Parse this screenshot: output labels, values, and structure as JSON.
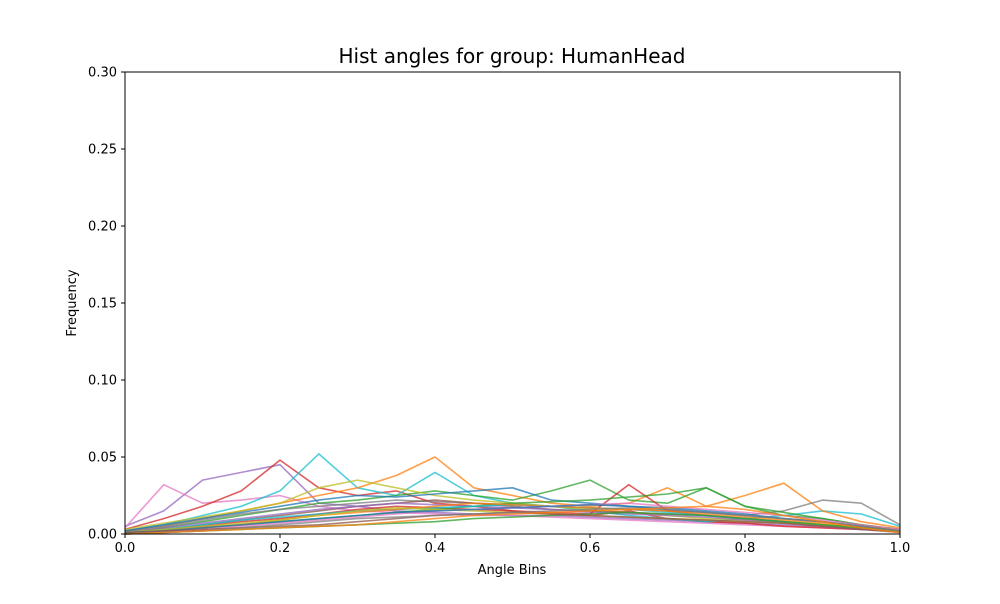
{
  "chart_data": {
    "type": "line",
    "title": "Hist angles for group: HumanHead",
    "xlabel": "Angle Bins",
    "ylabel": "Frequency",
    "xlim": [
      0.0,
      1.0
    ],
    "ylim": [
      0.0,
      0.3
    ],
    "xticks": [
      "0.0",
      "0.2",
      "0.4",
      "0.6",
      "0.8",
      "1.0"
    ],
    "yticks": [
      "0.00",
      "0.05",
      "0.10",
      "0.15",
      "0.20",
      "0.25",
      "0.30"
    ],
    "grid": false,
    "legend": "none",
    "x": [
      0.0,
      0.05,
      0.1,
      0.15,
      0.2,
      0.25,
      0.3,
      0.35,
      0.4,
      0.45,
      0.5,
      0.55,
      0.6,
      0.65,
      0.7,
      0.75,
      0.8,
      0.85,
      0.9,
      0.95,
      1.0
    ],
    "series": [
      {
        "color": "#9467bd",
        "values": [
          0.005,
          0.015,
          0.035,
          0.04,
          0.045,
          0.02,
          0.018,
          0.015,
          0.014,
          0.013,
          0.012,
          0.012,
          0.011,
          0.01,
          0.009,
          0.008,
          0.007,
          0.006,
          0.005,
          0.004,
          0.003
        ]
      },
      {
        "color": "#e377c2",
        "values": [
          0.004,
          0.032,
          0.02,
          0.022,
          0.025,
          0.018,
          0.015,
          0.014,
          0.013,
          0.012,
          0.012,
          0.011,
          0.01,
          0.009,
          0.008,
          0.007,
          0.006,
          0.005,
          0.004,
          0.003,
          0.002
        ]
      },
      {
        "color": "#d62728",
        "values": [
          0.003,
          0.01,
          0.018,
          0.028,
          0.048,
          0.03,
          0.025,
          0.028,
          0.02,
          0.018,
          0.015,
          0.013,
          0.012,
          0.015,
          0.01,
          0.008,
          0.007,
          0.005,
          0.004,
          0.003,
          0.002
        ]
      },
      {
        "color": "#17becf",
        "values": [
          0.002,
          0.006,
          0.012,
          0.018,
          0.028,
          0.052,
          0.03,
          0.025,
          0.04,
          0.025,
          0.02,
          0.018,
          0.015,
          0.012,
          0.01,
          0.008,
          0.01,
          0.012,
          0.015,
          0.013,
          0.005
        ]
      },
      {
        "color": "#ff7f0e",
        "values": [
          0.002,
          0.005,
          0.01,
          0.015,
          0.02,
          0.025,
          0.03,
          0.038,
          0.05,
          0.03,
          0.025,
          0.02,
          0.018,
          0.02,
          0.03,
          0.018,
          0.025,
          0.033,
          0.015,
          0.008,
          0.004
        ]
      },
      {
        "color": "#2ca02c",
        "values": [
          0.001,
          0.004,
          0.008,
          0.012,
          0.016,
          0.02,
          0.022,
          0.025,
          0.028,
          0.025,
          0.022,
          0.028,
          0.035,
          0.022,
          0.02,
          0.03,
          0.018,
          0.012,
          0.01,
          0.006,
          0.003
        ]
      },
      {
        "color": "#7f7f7f",
        "values": [
          0.002,
          0.005,
          0.009,
          0.013,
          0.016,
          0.018,
          0.02,
          0.022,
          0.021,
          0.02,
          0.019,
          0.018,
          0.017,
          0.016,
          0.015,
          0.014,
          0.012,
          0.015,
          0.022,
          0.02,
          0.006
        ]
      },
      {
        "color": "#bcbd22",
        "values": [
          0.003,
          0.007,
          0.011,
          0.015,
          0.02,
          0.03,
          0.035,
          0.03,
          0.025,
          0.022,
          0.02,
          0.018,
          0.016,
          0.014,
          0.012,
          0.01,
          0.009,
          0.008,
          0.006,
          0.004,
          0.002
        ]
      },
      {
        "color": "#1f77b4",
        "values": [
          0.002,
          0.006,
          0.01,
          0.014,
          0.018,
          0.022,
          0.025,
          0.024,
          0.026,
          0.028,
          0.03,
          0.022,
          0.02,
          0.018,
          0.016,
          0.014,
          0.012,
          0.01,
          0.008,
          0.005,
          0.003
        ]
      },
      {
        "color": "#8c564b",
        "values": [
          0.001,
          0.003,
          0.006,
          0.009,
          0.012,
          0.015,
          0.018,
          0.02,
          0.022,
          0.02,
          0.018,
          0.016,
          0.015,
          0.014,
          0.013,
          0.012,
          0.01,
          0.008,
          0.006,
          0.004,
          0.002
        ]
      },
      {
        "color": "#9467bd",
        "values": [
          0.001,
          0.004,
          0.007,
          0.01,
          0.013,
          0.016,
          0.018,
          0.02,
          0.019,
          0.018,
          0.017,
          0.016,
          0.014,
          0.013,
          0.012,
          0.011,
          0.009,
          0.007,
          0.005,
          0.003,
          0.002
        ]
      },
      {
        "color": "#d62728",
        "values": [
          0.001,
          0.003,
          0.005,
          0.008,
          0.01,
          0.013,
          0.016,
          0.018,
          0.017,
          0.016,
          0.015,
          0.014,
          0.013,
          0.032,
          0.015,
          0.012,
          0.01,
          0.008,
          0.006,
          0.004,
          0.002
        ]
      },
      {
        "color": "#2ca02c",
        "values": [
          0.0,
          0.002,
          0.004,
          0.006,
          0.008,
          0.01,
          0.012,
          0.014,
          0.016,
          0.018,
          0.02,
          0.021,
          0.022,
          0.024,
          0.026,
          0.03,
          0.018,
          0.014,
          0.01,
          0.006,
          0.003
        ]
      },
      {
        "color": "#17becf",
        "values": [
          0.001,
          0.003,
          0.006,
          0.009,
          0.011,
          0.013,
          0.015,
          0.016,
          0.017,
          0.018,
          0.019,
          0.018,
          0.017,
          0.016,
          0.014,
          0.012,
          0.01,
          0.008,
          0.006,
          0.004,
          0.002
        ]
      },
      {
        "color": "#ff7f0e",
        "values": [
          0.001,
          0.002,
          0.004,
          0.006,
          0.009,
          0.012,
          0.014,
          0.016,
          0.018,
          0.02,
          0.019,
          0.018,
          0.017,
          0.016,
          0.015,
          0.013,
          0.011,
          0.009,
          0.007,
          0.005,
          0.003
        ]
      },
      {
        "color": "#e377c2",
        "values": [
          0.0,
          0.002,
          0.003,
          0.005,
          0.007,
          0.009,
          0.011,
          0.013,
          0.015,
          0.016,
          0.017,
          0.018,
          0.019,
          0.02,
          0.018,
          0.016,
          0.014,
          0.012,
          0.009,
          0.006,
          0.003
        ]
      },
      {
        "color": "#bcbd22",
        "values": [
          0.001,
          0.003,
          0.005,
          0.007,
          0.009,
          0.012,
          0.015,
          0.017,
          0.016,
          0.015,
          0.014,
          0.013,
          0.012,
          0.011,
          0.01,
          0.009,
          0.008,
          0.007,
          0.006,
          0.004,
          0.002
        ]
      },
      {
        "color": "#1f77b4",
        "values": [
          0.001,
          0.002,
          0.004,
          0.006,
          0.008,
          0.01,
          0.012,
          0.014,
          0.015,
          0.016,
          0.017,
          0.018,
          0.019,
          0.018,
          0.017,
          0.015,
          0.013,
          0.01,
          0.008,
          0.005,
          0.002
        ]
      },
      {
        "color": "#2ca02c",
        "values": [
          0.0,
          0.001,
          0.002,
          0.003,
          0.004,
          0.005,
          0.006,
          0.007,
          0.008,
          0.01,
          0.011,
          0.012,
          0.013,
          0.014,
          0.013,
          0.012,
          0.01,
          0.008,
          0.006,
          0.004,
          0.002
        ]
      },
      {
        "color": "#8c564b",
        "values": [
          0.001,
          0.002,
          0.003,
          0.004,
          0.005,
          0.006,
          0.008,
          0.01,
          0.012,
          0.013,
          0.014,
          0.013,
          0.012,
          0.011,
          0.01,
          0.009,
          0.008,
          0.007,
          0.005,
          0.003,
          0.001
        ]
      },
      {
        "color": "#7f7f7f",
        "values": [
          0.0,
          0.001,
          0.002,
          0.004,
          0.006,
          0.008,
          0.01,
          0.011,
          0.012,
          0.013,
          0.014,
          0.015,
          0.016,
          0.017,
          0.016,
          0.014,
          0.012,
          0.01,
          0.008,
          0.005,
          0.002
        ]
      },
      {
        "color": "#ff7f0e",
        "values": [
          0.0,
          0.001,
          0.002,
          0.003,
          0.004,
          0.005,
          0.006,
          0.008,
          0.01,
          0.012,
          0.013,
          0.014,
          0.015,
          0.016,
          0.017,
          0.018,
          0.016,
          0.012,
          0.008,
          0.004,
          0.001
        ]
      }
    ]
  }
}
